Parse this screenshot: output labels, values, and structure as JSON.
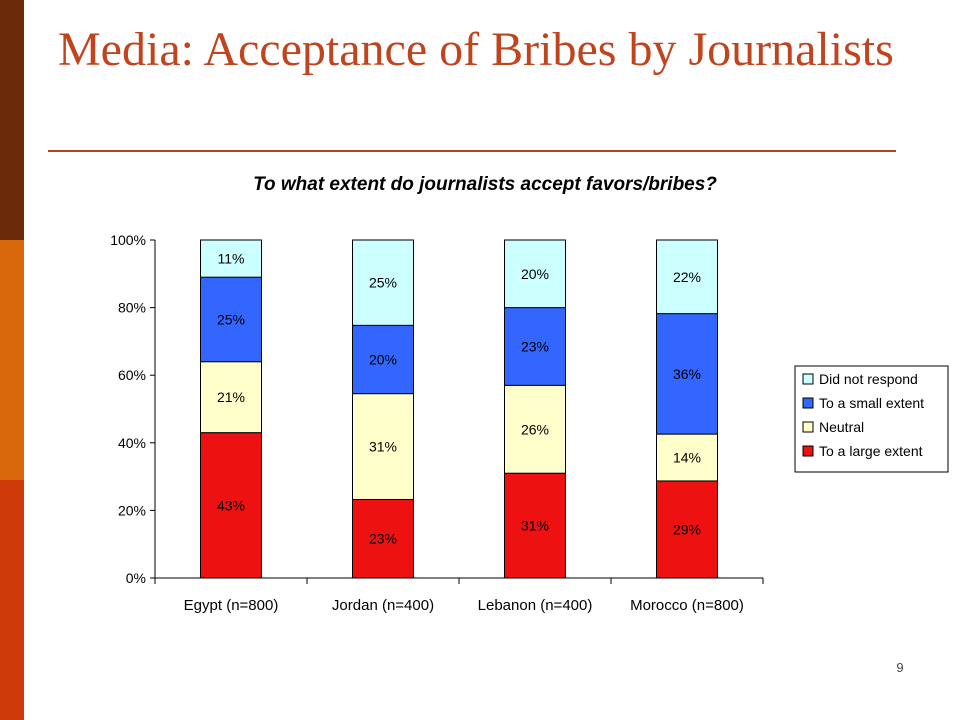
{
  "slide": {
    "title": "Media: Acceptance of Bribes by Journalists",
    "page_number": "9",
    "colors": {
      "title": "#c0451e",
      "strip_dark": "#6b2a08",
      "strip_mid": "#d9680c",
      "strip_light": "#cc3a0a"
    }
  },
  "chart_data": {
    "type": "bar",
    "stacked": true,
    "percent_stacked": true,
    "title": "To what extent do journalists accept favors/bribes?",
    "categories": [
      "Egypt (n=800)",
      "Jordan (n=400)",
      "Lebanon (n=400)",
      "Morocco (n=800)"
    ],
    "series": [
      {
        "name": "To a large extent",
        "color": "#ee1111",
        "values": [
          43,
          23,
          31,
          29
        ],
        "labels": [
          "43%",
          "23%",
          "31%",
          "29%"
        ]
      },
      {
        "name": "Neutral",
        "color": "#ffffcc",
        "values": [
          21,
          31,
          26,
          14
        ],
        "labels": [
          "21%",
          "31%",
          "26%",
          "14%"
        ]
      },
      {
        "name": "To a small extent",
        "color": "#3366ff",
        "values": [
          25,
          20,
          23,
          36
        ],
        "labels": [
          "25%",
          "20%",
          "23%",
          "36%"
        ]
      },
      {
        "name": "Did not respond",
        "color": "#ccffff",
        "values": [
          11,
          25,
          20,
          22
        ],
        "labels": [
          "11%",
          "25%",
          "20%",
          "22%"
        ]
      }
    ],
    "y_ticks": [
      "0%",
      "20%",
      "40%",
      "60%",
      "80%",
      "100%"
    ],
    "ylim": [
      0,
      100
    ],
    "grid": false,
    "legend_position": "right",
    "legend_order": [
      "Did not respond",
      "To a small extent",
      "Neutral",
      "To a large extent"
    ]
  }
}
